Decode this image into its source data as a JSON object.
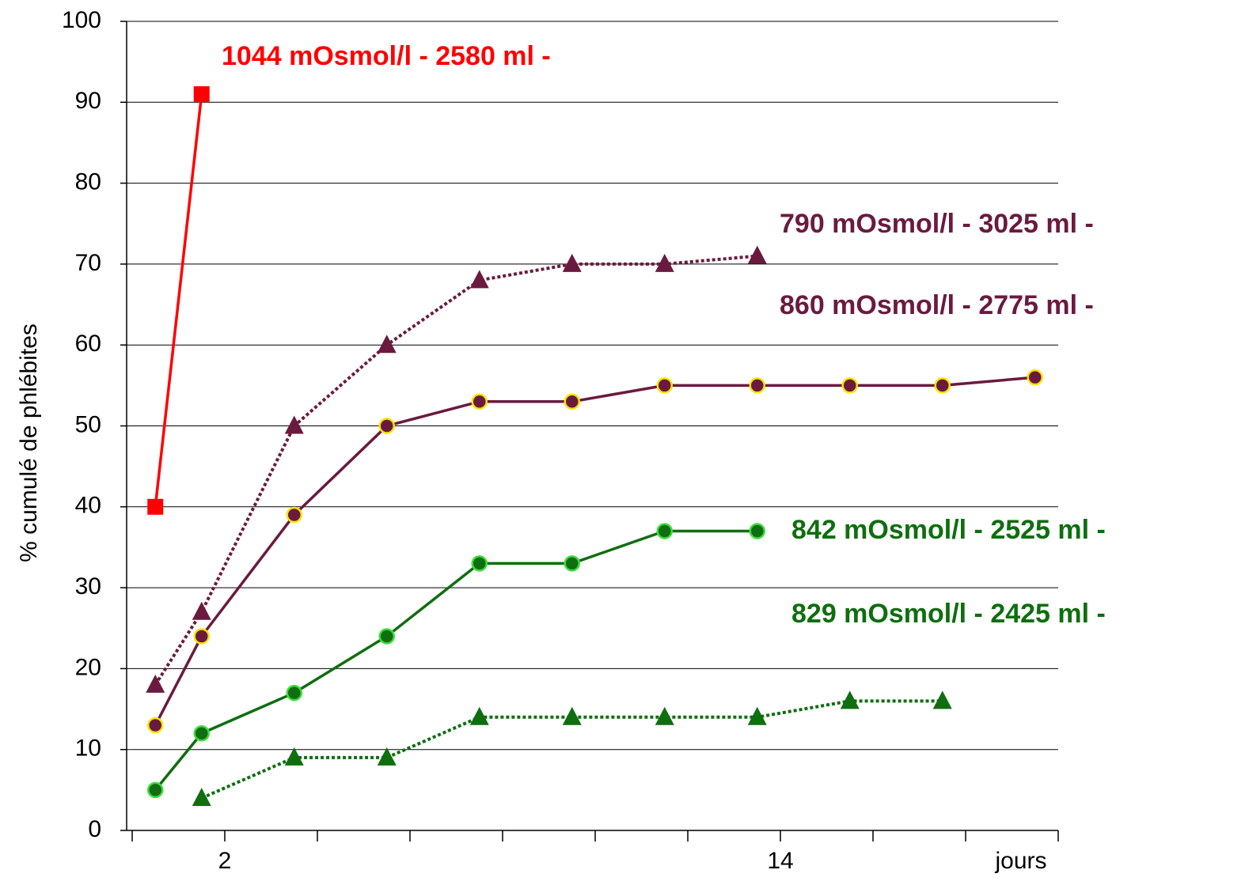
{
  "chart_data": {
    "type": "line",
    "y_label": "% cumulé de phlébites",
    "x_label": "jours",
    "xlim": [
      0,
      20
    ],
    "ylim": [
      0,
      100
    ],
    "xticks": [
      {
        "value": 0,
        "label": null
      },
      2,
      {
        "value": 4,
        "label": null
      },
      {
        "value": 6,
        "label": null
      },
      {
        "value": 8,
        "label": null
      },
      {
        "value": 10,
        "label": null
      },
      {
        "value": 12,
        "label": null
      },
      14,
      {
        "value": 16,
        "label": null
      },
      {
        "value": 18,
        "label": null
      },
      {
        "value": 20,
        "label": null
      }
    ],
    "yticks": [
      0,
      10,
      20,
      30,
      40,
      50,
      60,
      70,
      80,
      90,
      100
    ],
    "grid": true,
    "series": [
      {
        "name": "1044 mOsmol/l - 2580 ml -",
        "color": "#ff0000",
        "marker": "square",
        "dash": false,
        "x": [
          0.5,
          1.5
        ],
        "values": [
          40,
          91
        ]
      },
      {
        "name": "790 mOsmol/l - 3025 ml -",
        "color": "#6b1a3f",
        "marker": "triangle",
        "dash": true,
        "x": [
          0.5,
          1.5,
          3.5,
          5.5,
          7.5,
          9.5,
          11.5,
          13.5
        ],
        "values": [
          18,
          27,
          50,
          60,
          68,
          70,
          70,
          71
        ]
      },
      {
        "name": "860 mOsmol/l - 2775 ml -",
        "color": "#6b1a3f",
        "marker": "circle",
        "dash": false,
        "x": [
          0.5,
          1.5,
          3.5,
          5.5,
          7.5,
          9.5,
          11.5,
          13.5,
          15.5,
          17.5,
          19.5
        ],
        "values": [
          13,
          24,
          39,
          50,
          53,
          53,
          55,
          55,
          55,
          55,
          56
        ]
      },
      {
        "name": "842 mOsmol/l - 2525 ml -",
        "color": "#0f6e0f",
        "marker": "circle",
        "dash": false,
        "x": [
          0.5,
          1.5,
          3.5,
          5.5,
          7.5,
          9.5,
          11.5,
          13.5
        ],
        "values": [
          5,
          12,
          17,
          24,
          33,
          33,
          37,
          37
        ]
      },
      {
        "name": "829 mOsmol/l - 2425 ml -",
        "color": "#0f6e0f",
        "marker": "triangle",
        "dash": true,
        "x": [
          1.5,
          3.5,
          5.5,
          7.5,
          9.5,
          11.5,
          13.5,
          15.5,
          17.5
        ],
        "values": [
          4,
          9,
          9,
          14,
          14,
          14,
          14,
          16,
          16
        ]
      }
    ]
  }
}
